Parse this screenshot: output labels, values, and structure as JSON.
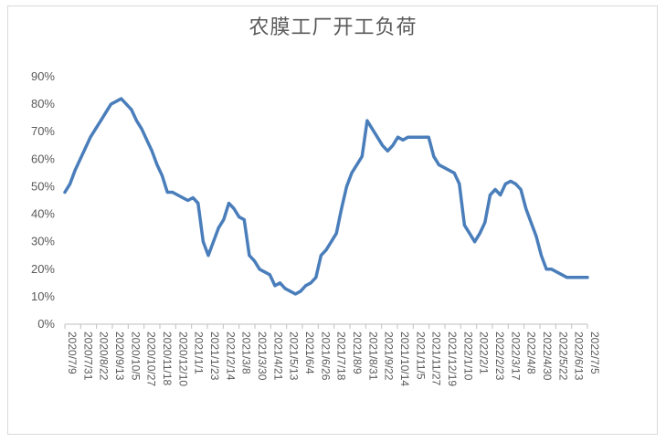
{
  "chart_data": {
    "type": "line",
    "title": "农膜工厂开工负荷",
    "xlabel": "",
    "ylabel": "",
    "ylim": [
      0,
      0.9
    ],
    "y_tick_labels": [
      "0%",
      "10%",
      "20%",
      "30%",
      "40%",
      "50%",
      "60%",
      "70%",
      "80%",
      "90%"
    ],
    "x_tick_labels": [
      "2020/7/9",
      "2020/7/31",
      "2020/8/22",
      "2020/9/13",
      "2020/10/5",
      "2020/10/27",
      "2020/11/18",
      "2020/12/10",
      "2021/1/1",
      "2021/1/23",
      "2021/2/14",
      "2021/3/8",
      "2021/3/30",
      "2021/4/21",
      "2021/5/13",
      "2021/6/4",
      "2021/6/26",
      "2021/7/18",
      "2021/8/9",
      "2021/8/31",
      "2021/9/22",
      "2021/10/14",
      "2021/11/5",
      "2021/11/27",
      "2021/12/19",
      "2022/1/10",
      "2022/2/1",
      "2022/2/23",
      "2022/3/17",
      "2022/4/8",
      "2022/4/30",
      "2022/5/22",
      "2022/6/13",
      "2022/7/5"
    ],
    "grid": false,
    "legend": "none",
    "colors": {
      "line": "#4a7ebb",
      "axis": "#bfbfbf",
      "text": "#595959"
    },
    "series": [
      {
        "values": [
          0.48,
          0.51,
          0.56,
          0.6,
          0.64,
          0.68,
          0.71,
          0.74,
          0.77,
          0.8,
          0.81,
          0.82,
          0.8,
          0.78,
          0.74,
          0.71,
          0.67,
          0.63,
          0.58,
          0.54,
          0.48,
          0.48,
          0.47,
          0.46,
          0.45,
          0.46,
          0.44,
          0.3,
          0.25,
          0.3,
          0.35,
          0.38,
          0.44,
          0.42,
          0.39,
          0.38,
          0.25,
          0.23,
          0.2,
          0.19,
          0.18,
          0.14,
          0.15,
          0.13,
          0.12,
          0.11,
          0.12,
          0.14,
          0.15,
          0.17,
          0.25,
          0.27,
          0.3,
          0.33,
          0.42,
          0.5,
          0.55,
          0.58,
          0.61,
          0.74,
          0.71,
          0.68,
          0.65,
          0.63,
          0.65,
          0.68,
          0.67,
          0.68,
          0.68,
          0.68,
          0.68,
          0.68,
          0.61,
          0.58,
          0.57,
          0.56,
          0.55,
          0.51,
          0.36,
          0.33,
          0.3,
          0.33,
          0.37,
          0.47,
          0.49,
          0.47,
          0.51,
          0.52,
          0.51,
          0.49,
          0.42,
          0.37,
          0.32,
          0.25,
          0.2,
          0.2,
          0.19,
          0.18,
          0.17,
          0.17,
          0.17,
          0.17,
          0.17
        ]
      }
    ]
  }
}
